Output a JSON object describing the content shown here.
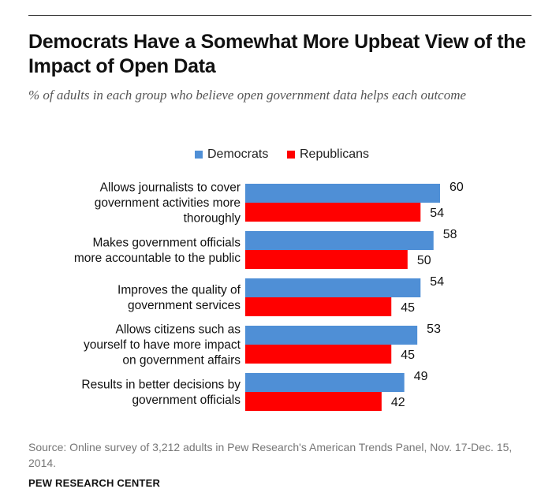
{
  "header": {
    "title": "Democrats Have a Somewhat More Upbeat View of the Impact of Open Data",
    "subtitle": "% of adults in each group who believe open government data helps each outcome"
  },
  "legend": [
    {
      "label": "Democrats",
      "color": "#4f8fd6"
    },
    {
      "label": "Republicans",
      "color": "#ff0000"
    }
  ],
  "footer": {
    "source": "Source: Online survey of 3,212 adults in Pew Research's American Trends Panel, Nov. 17-Dec. 15, 2014.",
    "brand": "PEW RESEARCH CENTER"
  },
  "chart_data": {
    "type": "bar",
    "orientation": "horizontal",
    "title": "Democrats Have a Somewhat More Upbeat View of the Impact of Open Data",
    "subtitle": "% of adults in each group who believe open government data helps each outcome",
    "categories": [
      [
        "Allows journalists to cover",
        "government activities more",
        "thoroughly"
      ],
      [
        "Makes government officials",
        "more accountable to the public"
      ],
      [
        "Improves the quality of",
        "government services"
      ],
      [
        "Allows citizens such as",
        "yourself to have more impact",
        "on government affairs"
      ],
      [
        "Results in better decisions by",
        "government officials"
      ]
    ],
    "series": [
      {
        "name": "Democrats",
        "color": "#4f8fd6",
        "values": [
          60,
          58,
          54,
          53,
          49
        ]
      },
      {
        "name": "Republicans",
        "color": "#ff0000",
        "values": [
          54,
          50,
          45,
          45,
          42
        ]
      }
    ],
    "xlim": [
      0,
      60
    ],
    "grid": false,
    "legend_position": "top"
  }
}
